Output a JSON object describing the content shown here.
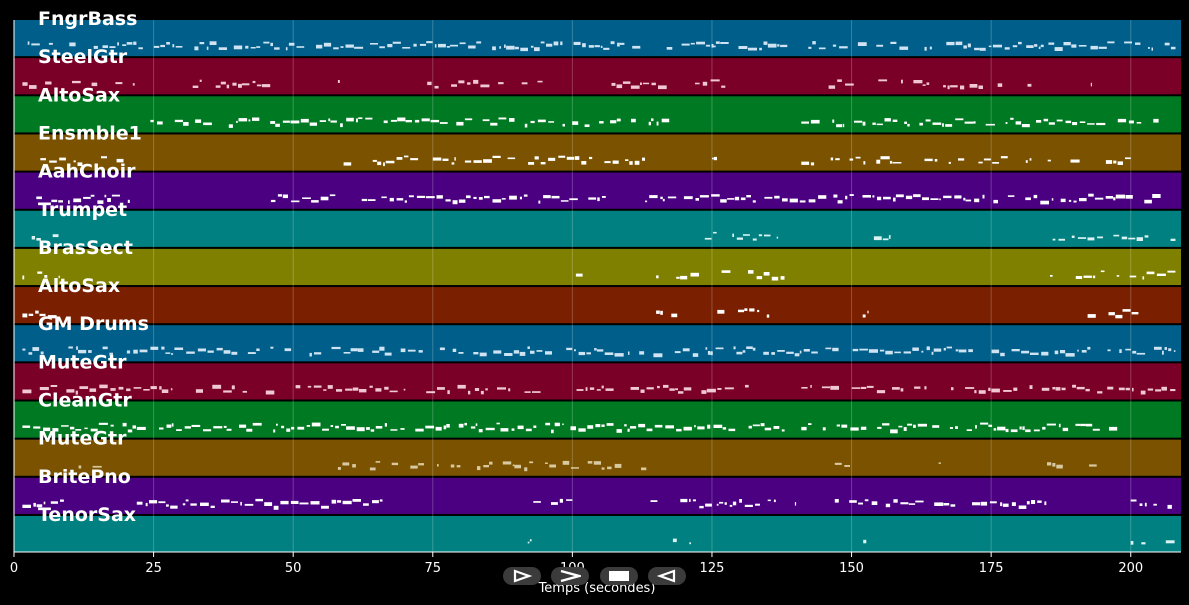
{
  "timeline": {
    "x_axis_label": "Temps (secondes)",
    "x_ticks": [
      "0",
      "25",
      "50",
      "75",
      "100",
      "125",
      "150",
      "175",
      "200"
    ],
    "x_tick_values": [
      0,
      25,
      50,
      75,
      100,
      125,
      150,
      175,
      200
    ],
    "x_range_seconds": [
      0,
      209
    ]
  },
  "tracks": [
    {
      "name": "FngrBass",
      "color": "#005f8a",
      "note_color": "#cfe3f2",
      "density": 0.8,
      "segments": [
        [
          1.5,
          138.5
        ],
        [
          141,
          208
        ]
      ]
    },
    {
      "name": "SteelGtr",
      "color": "#7a0028",
      "note_color": "#f0c7d4",
      "density": 0.55,
      "segments": [
        [
          1.5,
          22
        ],
        [
          32,
          48
        ],
        [
          58,
          60
        ],
        [
          74,
          95
        ],
        [
          107,
          128
        ],
        [
          137,
          184
        ],
        [
          192,
          193
        ]
      ]
    },
    {
      "name": "AltoSax",
      "color": "#007a22",
      "note_color": "#ffffff",
      "density": 0.72,
      "segments": [
        [
          22,
          118
        ],
        [
          141,
          205
        ]
      ]
    },
    {
      "name": "Ensmble1",
      "color": "#7a5200",
      "note_color": "#ffffff",
      "density": 0.66,
      "segments": [
        [
          4,
          21
        ],
        [
          58,
          113
        ],
        [
          125,
          126
        ],
        [
          141,
          200
        ]
      ]
    },
    {
      "name": "AahChoir",
      "color": "#4b0082",
      "note_color": "#ffffff",
      "density": 0.85,
      "segments": [
        [
          4,
          21
        ],
        [
          46,
          106
        ],
        [
          113,
          206
        ]
      ]
    },
    {
      "name": "Trumpet",
      "color": "#008080",
      "note_color": "#d9f2f2",
      "density": 0.55,
      "segments": [
        [
          1.5,
          8
        ],
        [
          80,
          86
        ],
        [
          100,
          102
        ],
        [
          115,
          137
        ],
        [
          154,
          157
        ],
        [
          186,
          208
        ]
      ]
    },
    {
      "name": "BrasSect",
      "color": "#808000",
      "note_color": "#ffffff",
      "density": 0.6,
      "segments": [
        [
          1.5,
          8
        ],
        [
          100,
          102
        ],
        [
          115,
          138
        ],
        [
          185,
          208
        ]
      ]
    },
    {
      "name": "AltoSax",
      "color": "#7a2000",
      "note_color": "#ffffff",
      "density": 0.55,
      "segments": [
        [
          1.5,
          8
        ],
        [
          92,
          93
        ],
        [
          115,
          137
        ],
        [
          152,
          153
        ],
        [
          188,
          205
        ]
      ]
    },
    {
      "name": "GM Drums",
      "color": "#005f8a",
      "note_color": "#cfe3f2",
      "density": 0.75,
      "segments": [
        [
          1.5,
          208
        ]
      ]
    },
    {
      "name": "MuteGtr",
      "color": "#7a0028",
      "note_color": "#f0c7d4",
      "density": 0.7,
      "segments": [
        [
          1.5,
          133
        ],
        [
          141,
          208
        ]
      ]
    },
    {
      "name": "CleanGtr",
      "color": "#007a22",
      "note_color": "#ffffff",
      "density": 0.9,
      "segments": [
        [
          1.5,
          138
        ],
        [
          141,
          198
        ]
      ]
    },
    {
      "name": "MuteGtr",
      "color": "#7a5200",
      "note_color": "#d9c9a0",
      "density": 0.55,
      "segments": [
        [
          9,
          21
        ],
        [
          58,
          114
        ],
        [
          147,
          152
        ],
        [
          165,
          166
        ],
        [
          185,
          197
        ]
      ]
    },
    {
      "name": "BritePno",
      "color": "#4b0082",
      "note_color": "#ffffff",
      "density": 0.8,
      "segments": [
        [
          1.5,
          9
        ],
        [
          22,
          66
        ],
        [
          93,
          100
        ],
        [
          114,
          140
        ],
        [
          147,
          185
        ],
        [
          200,
          208
        ]
      ]
    },
    {
      "name": "TenorSax",
      "color": "#008080",
      "note_color": "#d9f2f2",
      "density": 0.4,
      "segments": [
        [
          4,
          5
        ],
        [
          92,
          93
        ],
        [
          116,
          124
        ],
        [
          151,
          153
        ],
        [
          200,
          208
        ]
      ]
    }
  ],
  "controls": {
    "play_label": "play",
    "forward_label": "fast-forward",
    "stop_label": "stop",
    "rewind_label": "rewind"
  }
}
